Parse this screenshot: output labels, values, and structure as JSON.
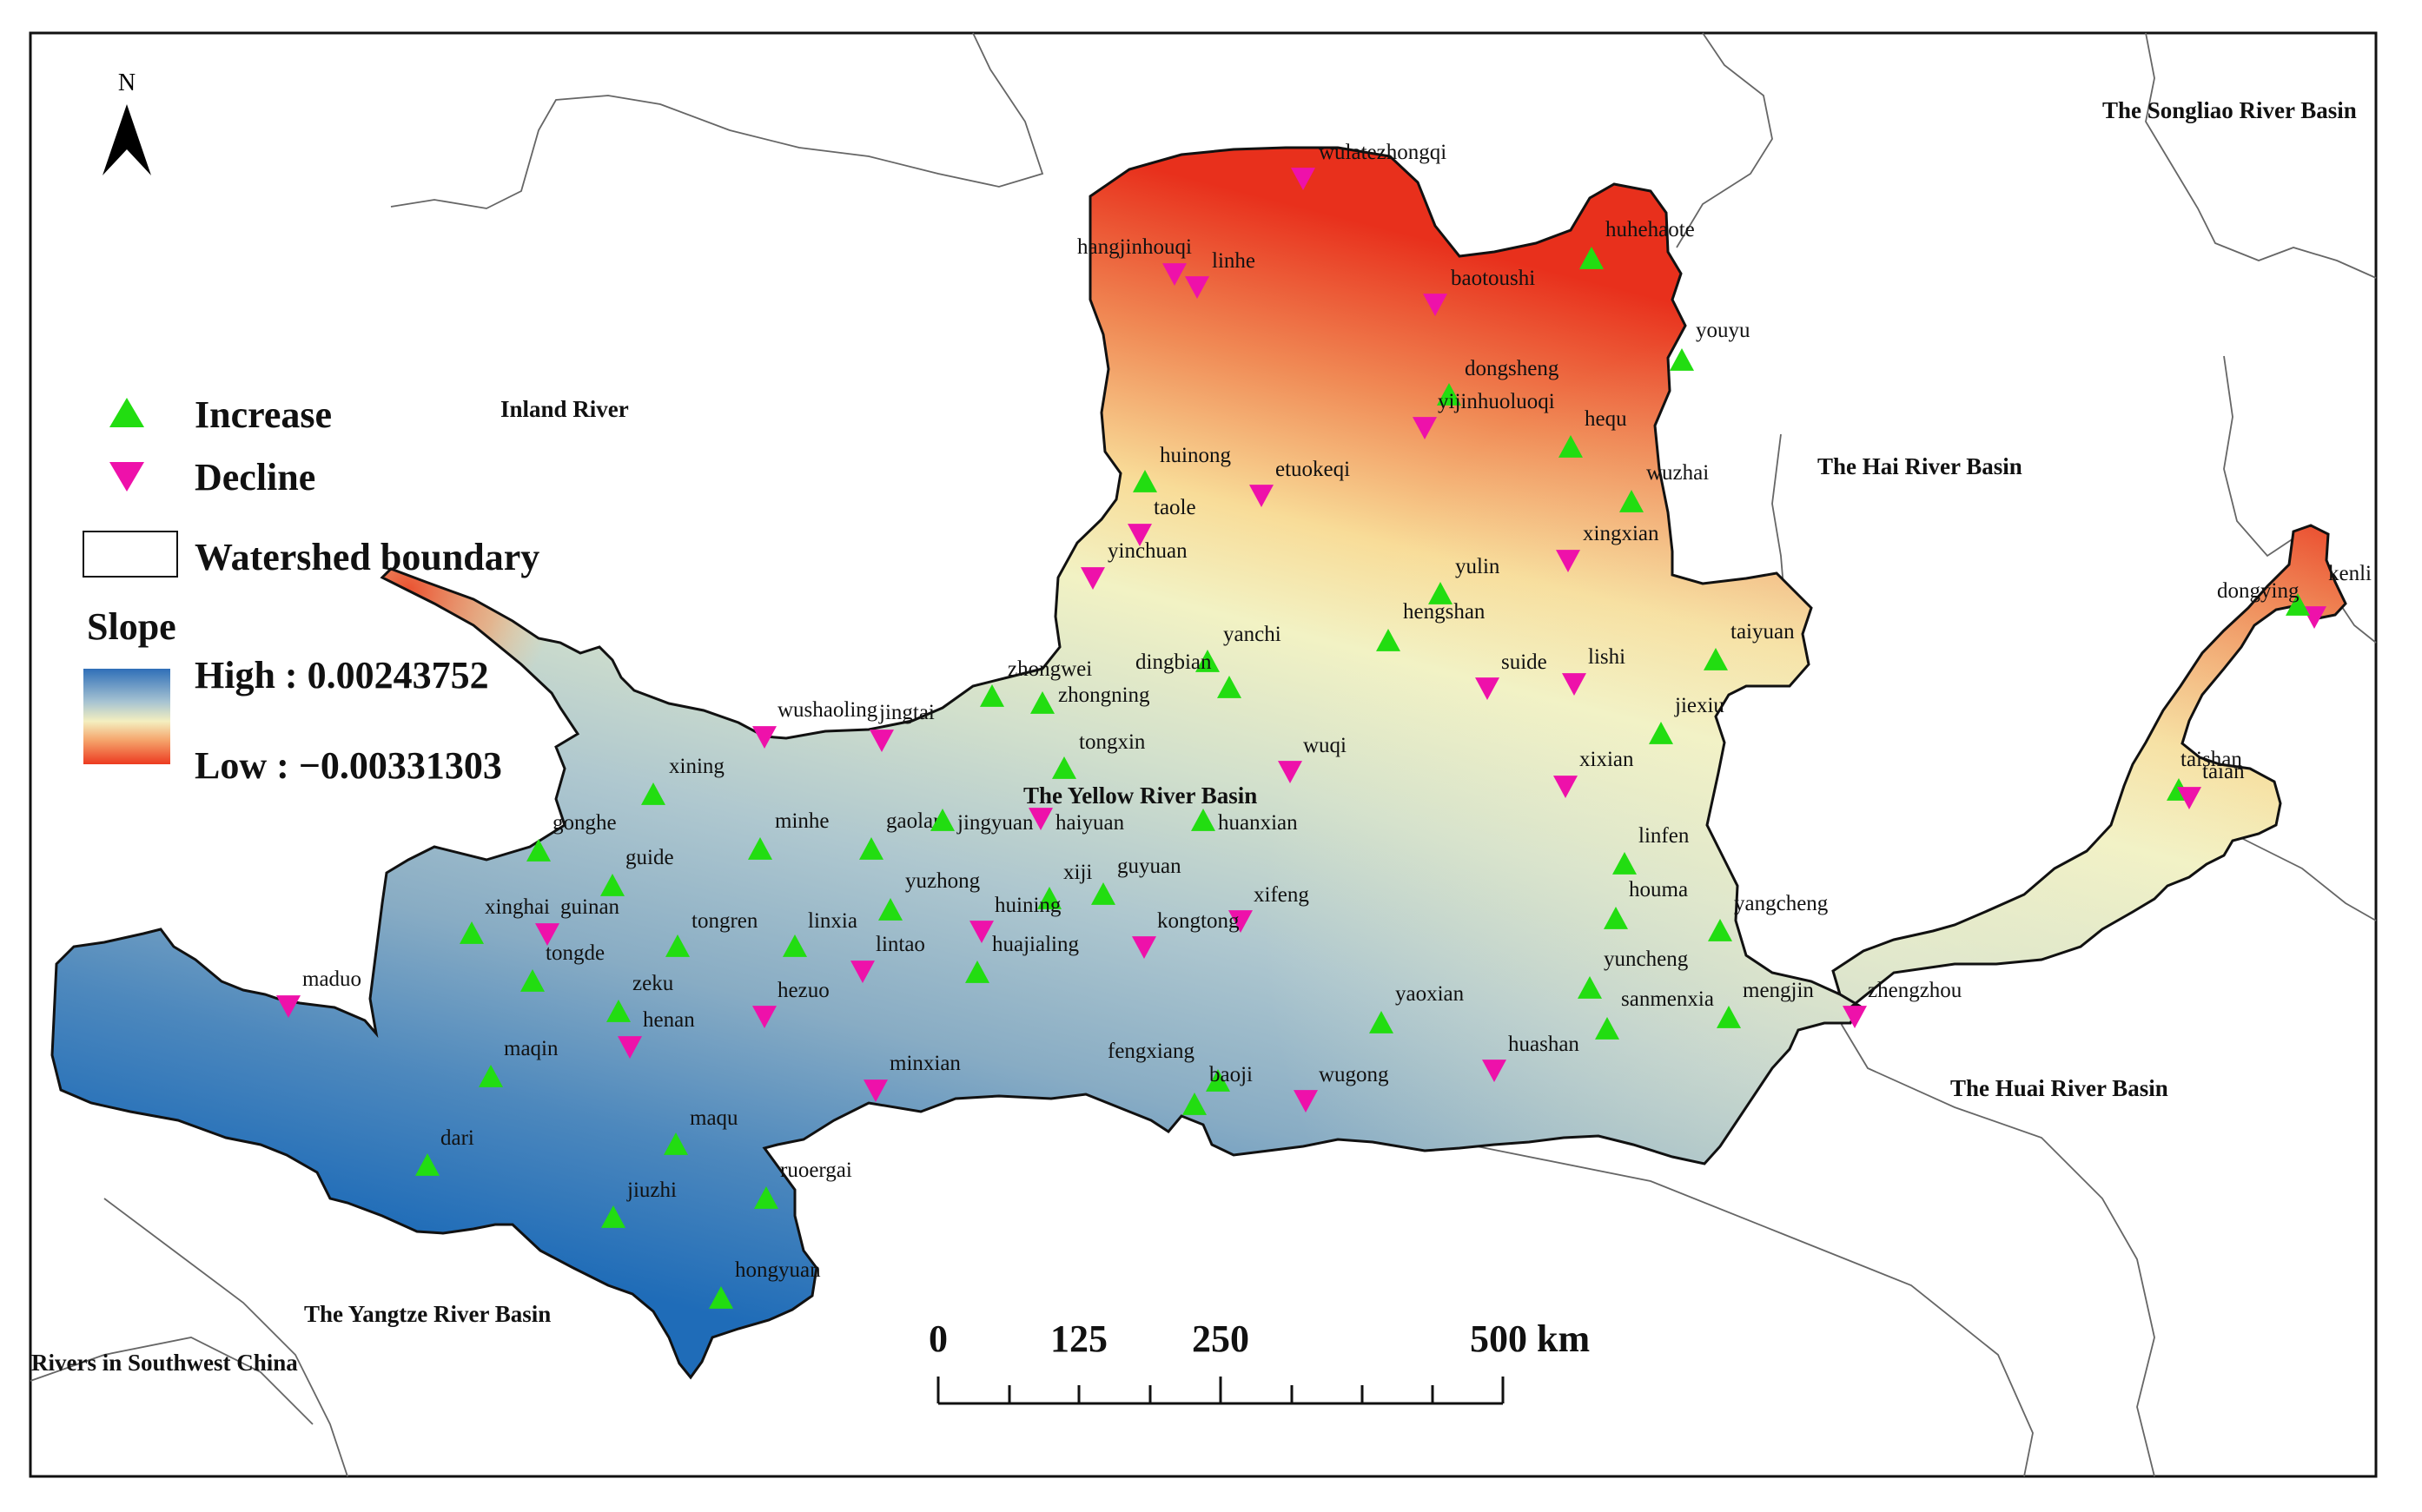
{
  "north_label": "N",
  "legend": {
    "increase_label": "Increase",
    "decline_label": "Decline",
    "boundary_label": "Watershed boundary",
    "slope_title": "Slope",
    "high_label": "High : 0.00243752",
    "low_label": "Low : −0.00331303",
    "increase_color": "#22dd11",
    "decline_color": "#ee11aa"
  },
  "scale_bar": {
    "labels": [
      "0",
      "125",
      "250",
      "500 km"
    ]
  },
  "regions": [
    {
      "id": "inland",
      "label": "Inland River"
    },
    {
      "id": "songliao",
      "label": "The Songliao River Basin"
    },
    {
      "id": "hai",
      "label": "The Hai River Basin"
    },
    {
      "id": "yellow",
      "label": "The Yellow River Basin"
    },
    {
      "id": "huai",
      "label": "The Huai River Basin"
    },
    {
      "id": "yangtze",
      "label": "The Yangtze River Basin"
    },
    {
      "id": "southwest",
      "label": "Rivers in Southwest China"
    }
  ],
  "stations": [
    {
      "name": "wulatezhongqi",
      "trend": "decline"
    },
    {
      "name": "hangjinhouqi",
      "trend": "decline"
    },
    {
      "name": "linhe",
      "trend": "decline"
    },
    {
      "name": "huhehaote",
      "trend": "increase"
    },
    {
      "name": "baotoushi",
      "trend": "decline"
    },
    {
      "name": "youyu",
      "trend": "increase"
    },
    {
      "name": "dongsheng",
      "trend": "increase"
    },
    {
      "name": "yijinhuoluoqi",
      "trend": "decline"
    },
    {
      "name": "hequ",
      "trend": "increase"
    },
    {
      "name": "huinong",
      "trend": "increase"
    },
    {
      "name": "etuokeqi",
      "trend": "decline"
    },
    {
      "name": "taole",
      "trend": "decline"
    },
    {
      "name": "wuzhai",
      "trend": "increase"
    },
    {
      "name": "yinchuan",
      "trend": "decline"
    },
    {
      "name": "xingxian",
      "trend": "decline"
    },
    {
      "name": "yulin",
      "trend": "increase"
    },
    {
      "name": "hengshan",
      "trend": "increase"
    },
    {
      "name": "kenli",
      "trend": "decline"
    },
    {
      "name": "dongying",
      "trend": "increase"
    },
    {
      "name": "taiyuan",
      "trend": "increase"
    },
    {
      "name": "dingbian",
      "trend": "increase"
    },
    {
      "name": "yanchi",
      "trend": "increase"
    },
    {
      "name": "zhongwei",
      "trend": "increase"
    },
    {
      "name": "zhongning",
      "trend": "increase"
    },
    {
      "name": "suide",
      "trend": "decline"
    },
    {
      "name": "lishi",
      "trend": "decline"
    },
    {
      "name": "wushaoling",
      "trend": "decline"
    },
    {
      "name": "jingtai",
      "trend": "decline"
    },
    {
      "name": "jiexiu",
      "trend": "increase"
    },
    {
      "name": "tongxin",
      "trend": "increase"
    },
    {
      "name": "wuqi",
      "trend": "decline"
    },
    {
      "name": "xixian",
      "trend": "decline"
    },
    {
      "name": "taishan",
      "trend": "increase"
    },
    {
      "name": "taian",
      "trend": "decline"
    },
    {
      "name": "xining",
      "trend": "increase"
    },
    {
      "name": "gonghe",
      "trend": "increase"
    },
    {
      "name": "minhe",
      "trend": "increase"
    },
    {
      "name": "gaolan",
      "trend": "increase"
    },
    {
      "name": "jingyuan",
      "trend": "increase"
    },
    {
      "name": "haiyuan",
      "trend": "decline"
    },
    {
      "name": "huanxian",
      "trend": "increase"
    },
    {
      "name": "linfen",
      "trend": "increase"
    },
    {
      "name": "guide",
      "trend": "increase"
    },
    {
      "name": "xinghai",
      "trend": "increase"
    },
    {
      "name": "guinan",
      "trend": "decline"
    },
    {
      "name": "yuzhong",
      "trend": "increase"
    },
    {
      "name": "xiji",
      "trend": "increase"
    },
    {
      "name": "guyuan",
      "trend": "increase"
    },
    {
      "name": "xifeng",
      "trend": "decline"
    },
    {
      "name": "houma",
      "trend": "increase"
    },
    {
      "name": "yangcheng",
      "trend": "increase"
    },
    {
      "name": "tongren",
      "trend": "increase"
    },
    {
      "name": "linxia",
      "trend": "increase"
    },
    {
      "name": "huining",
      "trend": "decline"
    },
    {
      "name": "kongtong",
      "trend": "decline"
    },
    {
      "name": "tongde",
      "trend": "increase"
    },
    {
      "name": "lintao",
      "trend": "decline"
    },
    {
      "name": "huajialing",
      "trend": "increase"
    },
    {
      "name": "yuncheng",
      "trend": "increase"
    },
    {
      "name": "maduo",
      "trend": "decline"
    },
    {
      "name": "zeku",
      "trend": "increase"
    },
    {
      "name": "hezuo",
      "trend": "decline"
    },
    {
      "name": "mengjin",
      "trend": "increase"
    },
    {
      "name": "zhengzhou",
      "trend": "decline"
    },
    {
      "name": "sanmenxia",
      "trend": "increase"
    },
    {
      "name": "yaoxian",
      "trend": "increase"
    },
    {
      "name": "henan",
      "trend": "decline"
    },
    {
      "name": "maqin",
      "trend": "increase"
    },
    {
      "name": "huashan",
      "trend": "decline"
    },
    {
      "name": "minxian",
      "trend": "decline"
    },
    {
      "name": "fengxiang",
      "trend": "increase"
    },
    {
      "name": "baoji",
      "trend": "increase"
    },
    {
      "name": "wugong",
      "trend": "decline"
    },
    {
      "name": "dari",
      "trend": "increase"
    },
    {
      "name": "maqu",
      "trend": "increase"
    },
    {
      "name": "ruoergai",
      "trend": "increase"
    },
    {
      "name": "jiuzhi",
      "trend": "increase"
    },
    {
      "name": "hongyuan",
      "trend": "increase"
    }
  ]
}
